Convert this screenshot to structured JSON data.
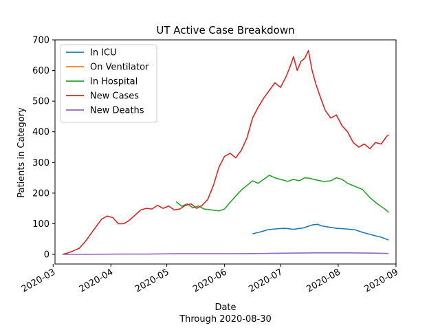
{
  "chart_data": {
    "type": "line",
    "title": "UT Active Case Breakdown",
    "xlabel": "Date",
    "subtitle": "Through 2020-08-30",
    "ylabel": "Patients in Category",
    "ylim": [
      0,
      700
    ],
    "yticks": [
      0,
      100,
      200,
      300,
      400,
      500,
      600,
      700
    ],
    "xlim": [
      "2020-03-02",
      "2020-09-01"
    ],
    "xticks": [
      "2020-03-01",
      "2020-04-01",
      "2020-05-01",
      "2020-06-01",
      "2020-07-01",
      "2020-08-01",
      "2020-09-01"
    ],
    "grid": false,
    "legend": "top-left",
    "series": [
      {
        "name": "In ICU",
        "color": "#1f77b4",
        "x": [
          "2020-06-16",
          "2020-06-20",
          "2020-06-24",
          "2020-06-28",
          "2020-07-03",
          "2020-07-08",
          "2020-07-13",
          "2020-07-18",
          "2020-07-21",
          "2020-07-23",
          "2020-07-26",
          "2020-07-31",
          "2020-08-05",
          "2020-08-10",
          "2020-08-14",
          "2020-08-20",
          "2020-08-24",
          "2020-08-28"
        ],
        "y": [
          67,
          73,
          80,
          83,
          85,
          82,
          86,
          96,
          98,
          93,
          90,
          85,
          83,
          80,
          72,
          62,
          56,
          47
        ]
      },
      {
        "name": "On Ventilator",
        "color": "#ff7f0e",
        "x": [],
        "y": []
      },
      {
        "name": "In Hospital",
        "color": "#2ca02c",
        "x": [
          "2020-05-06",
          "2020-05-09",
          "2020-05-12",
          "2020-05-15",
          "2020-05-18",
          "2020-05-21",
          "2020-05-25",
          "2020-05-29",
          "2020-06-01",
          "2020-06-04",
          "2020-06-07",
          "2020-06-10",
          "2020-06-13",
          "2020-06-16",
          "2020-06-19",
          "2020-06-22",
          "2020-06-25",
          "2020-06-28",
          "2020-07-02",
          "2020-07-05",
          "2020-07-08",
          "2020-07-11",
          "2020-07-14",
          "2020-07-17",
          "2020-07-20",
          "2020-07-24",
          "2020-07-28",
          "2020-07-31",
          "2020-08-03",
          "2020-08-06",
          "2020-08-10",
          "2020-08-14",
          "2020-08-18",
          "2020-08-22",
          "2020-08-26",
          "2020-08-28"
        ],
        "y": [
          172,
          157,
          165,
          152,
          158,
          148,
          145,
          142,
          148,
          170,
          190,
          210,
          225,
          240,
          232,
          245,
          258,
          250,
          243,
          238,
          245,
          240,
          250,
          248,
          243,
          238,
          240,
          250,
          245,
          232,
          222,
          212,
          185,
          165,
          148,
          137
        ]
      },
      {
        "name": "New Cases",
        "color": "#d62728",
        "x": [
          "2020-03-06",
          "2020-03-09",
          "2020-03-12",
          "2020-03-15",
          "2020-03-18",
          "2020-03-21",
          "2020-03-24",
          "2020-03-27",
          "2020-03-30",
          "2020-04-02",
          "2020-04-05",
          "2020-04-08",
          "2020-04-11",
          "2020-04-14",
          "2020-04-17",
          "2020-04-20",
          "2020-04-23",
          "2020-04-26",
          "2020-04-29",
          "2020-05-02",
          "2020-05-05",
          "2020-05-08",
          "2020-05-11",
          "2020-05-14",
          "2020-05-17",
          "2020-05-20",
          "2020-05-23",
          "2020-05-26",
          "2020-05-29",
          "2020-06-01",
          "2020-06-04",
          "2020-06-07",
          "2020-06-10",
          "2020-06-13",
          "2020-06-16",
          "2020-06-19",
          "2020-06-22",
          "2020-06-25",
          "2020-06-28",
          "2020-07-01",
          "2020-07-04",
          "2020-07-06",
          "2020-07-08",
          "2020-07-10",
          "2020-07-12",
          "2020-07-14",
          "2020-07-16",
          "2020-07-18",
          "2020-07-20",
          "2020-07-22",
          "2020-07-25",
          "2020-07-28",
          "2020-07-31",
          "2020-08-03",
          "2020-08-06",
          "2020-08-09",
          "2020-08-12",
          "2020-08-15",
          "2020-08-18",
          "2020-08-21",
          "2020-08-24",
          "2020-08-27",
          "2020-08-28"
        ],
        "y": [
          0,
          5,
          12,
          20,
          40,
          65,
          90,
          115,
          125,
          120,
          100,
          100,
          112,
          128,
          145,
          150,
          148,
          160,
          150,
          158,
          145,
          148,
          160,
          165,
          150,
          160,
          180,
          225,
          285,
          320,
          330,
          315,
          340,
          380,
          445,
          480,
          510,
          535,
          560,
          545,
          580,
          610,
          645,
          600,
          630,
          640,
          665,
          600,
          555,
          520,
          470,
          445,
          455,
          420,
          400,
          365,
          350,
          360,
          345,
          365,
          360,
          385,
          390
        ]
      },
      {
        "name": "New Deaths",
        "color": "#9467bd",
        "x": [
          "2020-03-06",
          "2020-03-20",
          "2020-04-05",
          "2020-04-20",
          "2020-05-05",
          "2020-05-20",
          "2020-06-05",
          "2020-06-20",
          "2020-07-05",
          "2020-07-20",
          "2020-08-05",
          "2020-08-20",
          "2020-08-28"
        ],
        "y": [
          0,
          0,
          1,
          1,
          2,
          2,
          2,
          3,
          4,
          5,
          5,
          4,
          3
        ]
      }
    ]
  }
}
